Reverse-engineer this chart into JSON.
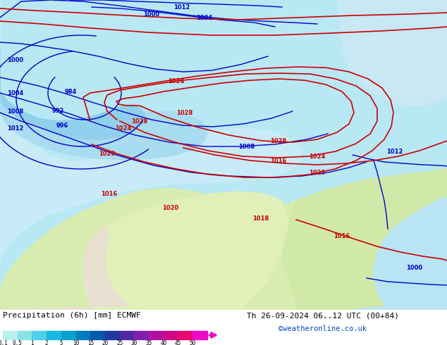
{
  "title_left": "Precipitation (6h) [mm] ECMWF",
  "title_right": "Th 26-09-2024 06..12 UTC (00+84)",
  "credit": "©weatheronline.co.uk",
  "colorbar_values": [
    0.1,
    0.5,
    1,
    2,
    5,
    10,
    15,
    20,
    25,
    30,
    35,
    40,
    45,
    50
  ],
  "colorbar_colors_hex": [
    "#b8f0f0",
    "#88e4e4",
    "#50d0e8",
    "#18b8e0",
    "#00a0d0",
    "#007cc0",
    "#0058b0",
    "#2038a0",
    "#5028a8",
    "#8020b0",
    "#b010a0",
    "#d00888",
    "#e80870",
    "#f008c8"
  ],
  "blue": "#0000cc",
  "red": "#cc0000",
  "ocean_color": "#a8dff0",
  "precip_light": "#c0ecf8",
  "land_yellow_green": "#d8ecb0",
  "land_green": "#c8e4a0",
  "figure_width": 6.34,
  "figure_height": 4.9,
  "dpi": 100,
  "fs": 6.0,
  "credit_color": "#0044cc",
  "title_fontsize": 8.0,
  "credit_fontsize": 7.5
}
